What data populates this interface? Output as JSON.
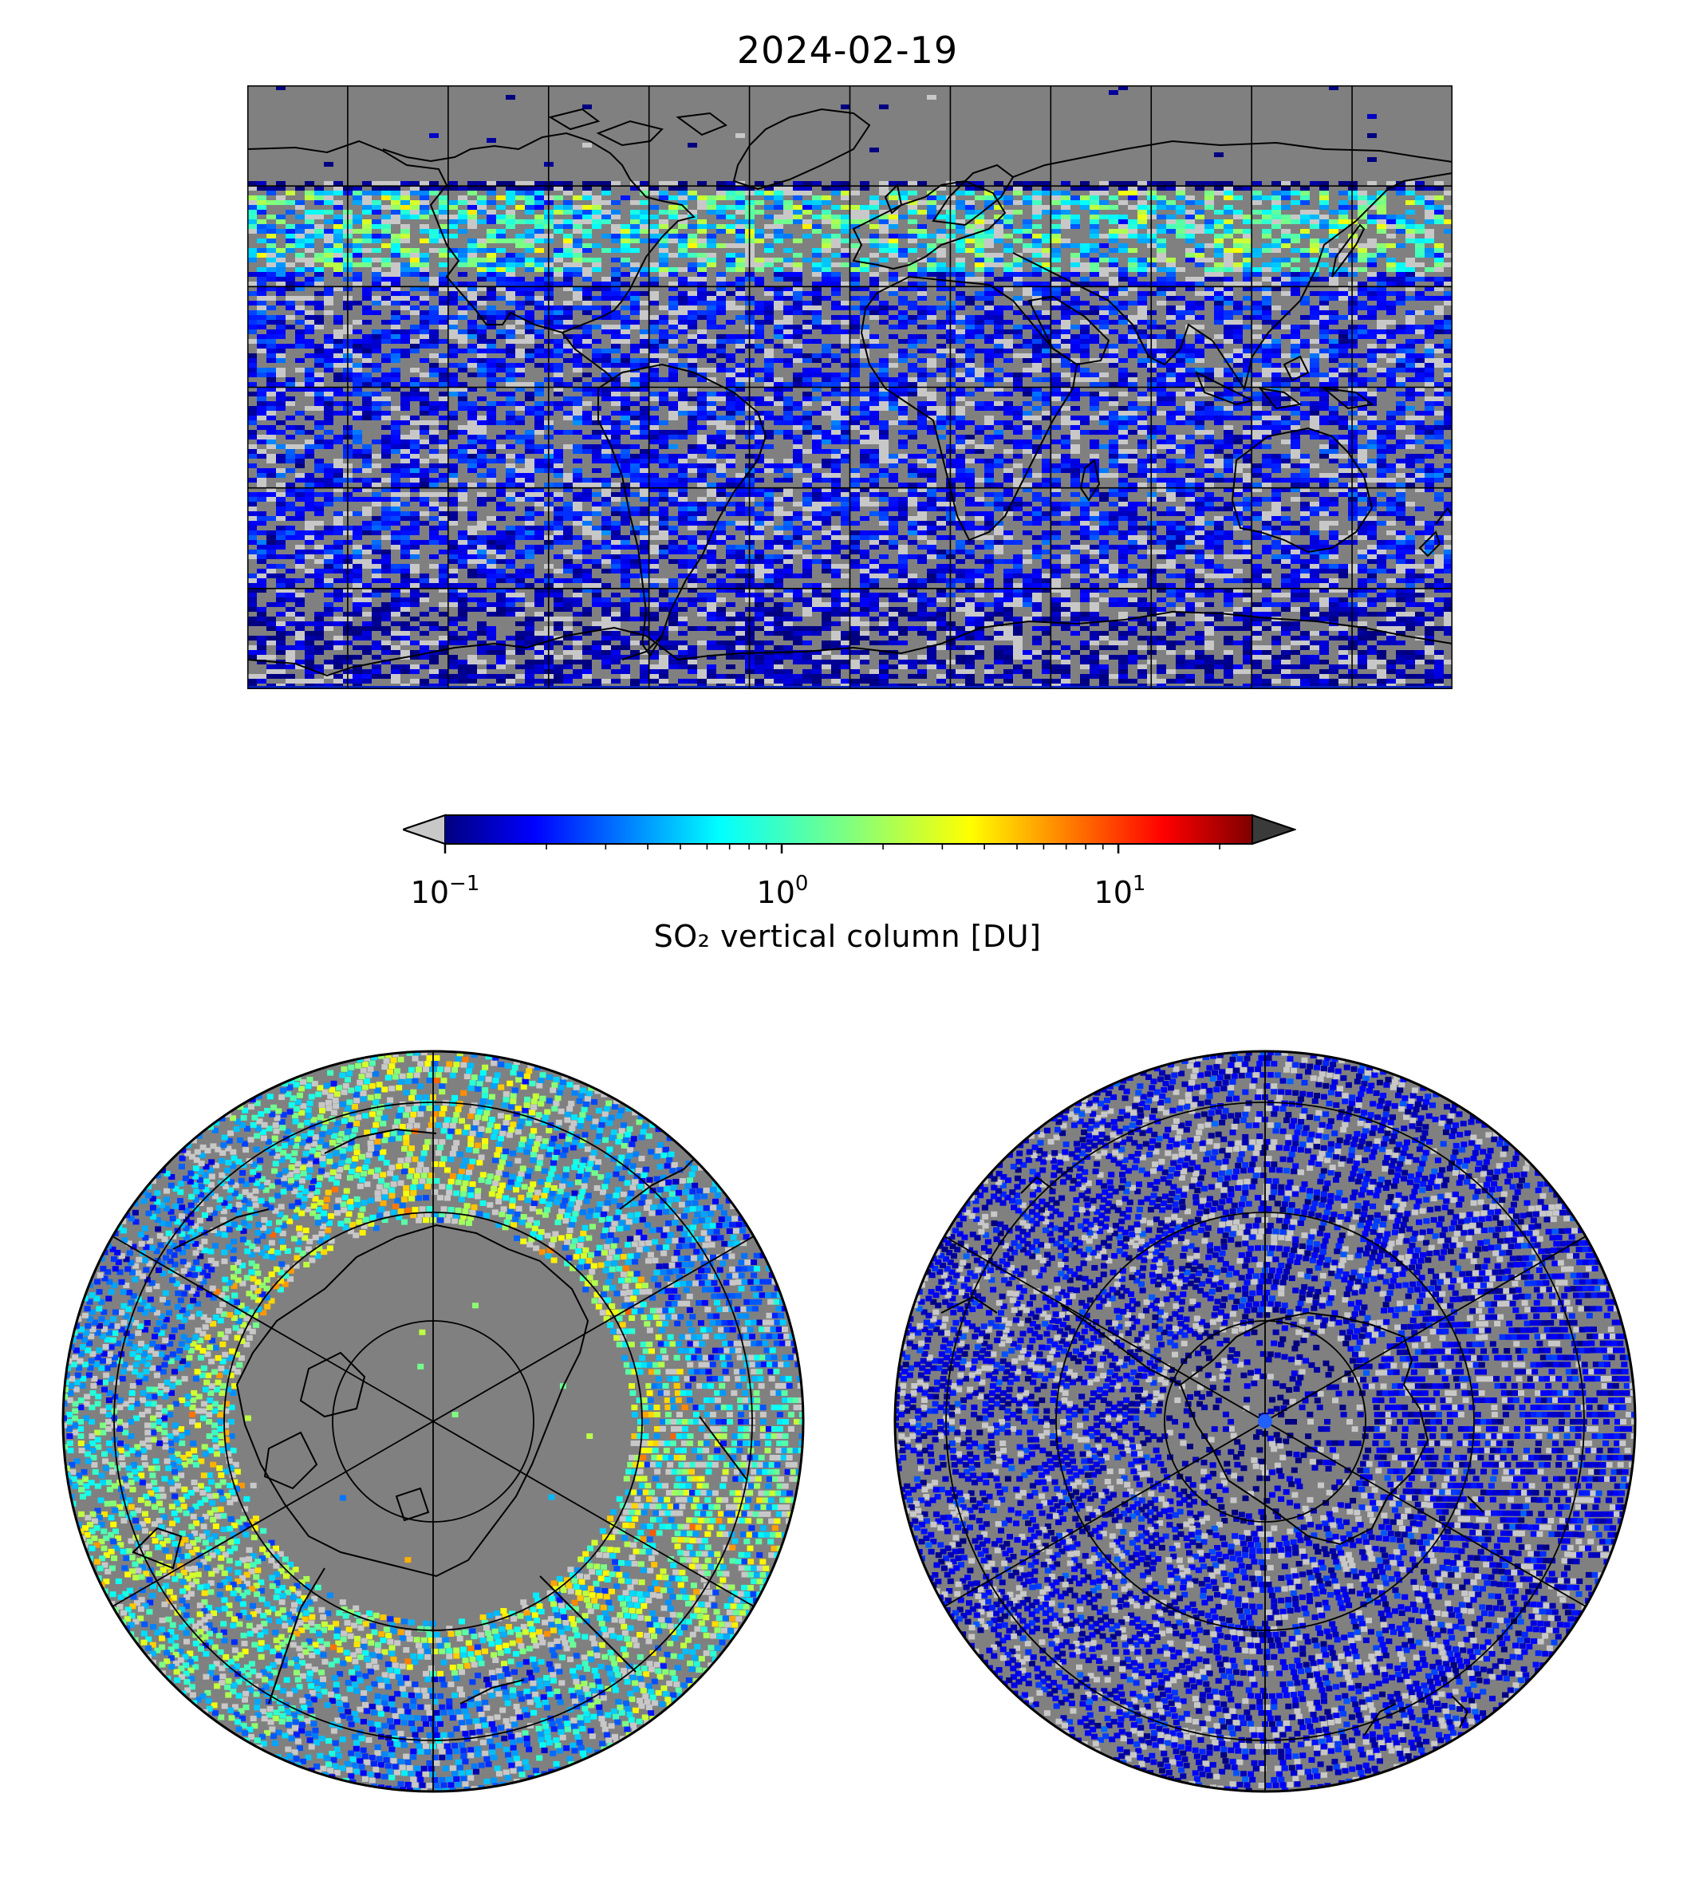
{
  "title": "2024-02-19",
  "colorbar": {
    "label": "SO₂ vertical column [DU]",
    "scale": "log",
    "range": [
      0.1,
      25
    ],
    "colormap": "jet",
    "under_color": "#c8c8c8",
    "over_color": "#3a3a3a",
    "ticks": [
      {
        "base": "10",
        "exp": "−1"
      },
      {
        "base": "10",
        "exp": "0"
      },
      {
        "base": "10",
        "exp": "1"
      }
    ]
  },
  "maps": {
    "global": {
      "projection": "plate-carree",
      "background": "#808080",
      "grid_lon_step": 30,
      "grid_lat_step": 30
    },
    "north_polar": {
      "projection": "north-polar-stereographic",
      "background": "#808080"
    },
    "south_polar": {
      "projection": "south-polar-stereographic",
      "background": "#808080"
    }
  },
  "colors": {
    "no_data": "#808080",
    "low": "#0000d0",
    "below_range": "#c8c8c8",
    "coastline": "#000000",
    "gridline": "#000000"
  }
}
